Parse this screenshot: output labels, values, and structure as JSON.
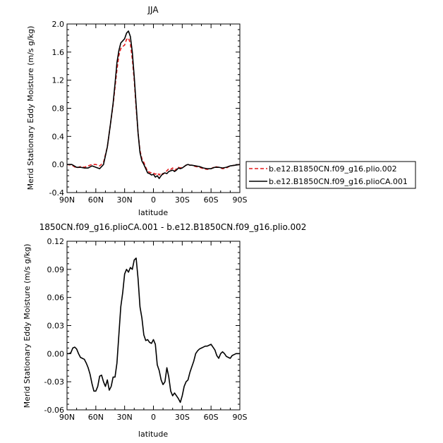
{
  "chart_data": [
    {
      "type": "line",
      "title": "JJA",
      "xlabel": "latitude",
      "ylabel": "Merid Stationary Eddy Moisture (m/s g/kg)",
      "xlim": [
        90,
        -90
      ],
      "ylim": [
        -0.4,
        2.0
      ],
      "xticks": [
        90,
        60,
        30,
        0,
        -30,
        -60,
        -90
      ],
      "xtick_labels": [
        "90N",
        "60N",
        "30N",
        "0",
        "30S",
        "60S",
        "90S"
      ],
      "yticks": [
        -0.4,
        0.0,
        0.4,
        0.8,
        1.2,
        1.6,
        2.0
      ],
      "ytick_labels": [
        "-0.4",
        "0.0",
        "0.4",
        "0.8",
        "1.2",
        "1.6",
        "2.0"
      ],
      "legend_position": "right",
      "series": [
        {
          "name": "b.e12.B1850CN.f09_g16.plio.002",
          "color": "#e41a1c",
          "dash": "dashed",
          "x": [
            90,
            85,
            80,
            76,
            72,
            68,
            64,
            60,
            56,
            52,
            48,
            45,
            42,
            40,
            38,
            36,
            34,
            32,
            30,
            28,
            26,
            24,
            22,
            20,
            18,
            16,
            14,
            12,
            10,
            8,
            6,
            4,
            2,
            0,
            -2,
            -4,
            -6,
            -8,
            -10,
            -12,
            -14,
            -16,
            -18,
            -20,
            -22,
            -24,
            -26,
            -28,
            -30,
            -32,
            -34,
            -36,
            -38,
            -40,
            -44,
            -48,
            -52,
            -56,
            -60,
            -64,
            -68,
            -72,
            -76,
            -80,
            -85,
            -90
          ],
          "y": [
            0.0,
            -0.01,
            -0.05,
            -0.03,
            -0.04,
            -0.02,
            0.0,
            0.0,
            -0.02,
            0.03,
            0.25,
            0.55,
            0.85,
            1.1,
            1.35,
            1.55,
            1.65,
            1.68,
            1.7,
            1.78,
            1.8,
            1.72,
            1.5,
            1.2,
            0.8,
            0.45,
            0.2,
            0.08,
            0.03,
            -0.04,
            -0.1,
            -0.11,
            -0.12,
            -0.12,
            -0.14,
            -0.12,
            -0.15,
            -0.12,
            -0.14,
            -0.11,
            -0.09,
            -0.06,
            -0.07,
            -0.05,
            -0.09,
            -0.06,
            -0.04,
            -0.05,
            -0.04,
            -0.03,
            -0.01,
            0.0,
            -0.01,
            -0.01,
            -0.03,
            -0.04,
            -0.06,
            -0.07,
            -0.06,
            -0.03,
            -0.04,
            -0.06,
            -0.05,
            -0.02,
            -0.01,
            0.0
          ]
        },
        {
          "name": "b.e12.B1850CN.f09_g16.plioCA.001",
          "color": "#000000",
          "dash": "solid",
          "x": [
            90,
            85,
            80,
            76,
            72,
            68,
            64,
            60,
            56,
            52,
            48,
            45,
            42,
            40,
            38,
            36,
            34,
            32,
            30,
            28,
            26,
            24,
            22,
            20,
            18,
            16,
            14,
            12,
            10,
            8,
            6,
            4,
            2,
            0,
            -2,
            -4,
            -6,
            -8,
            -10,
            -12,
            -14,
            -16,
            -18,
            -20,
            -22,
            -24,
            -26,
            -28,
            -30,
            -32,
            -34,
            -36,
            -38,
            -40,
            -44,
            -48,
            -52,
            -56,
            -60,
            -64,
            -68,
            -72,
            -76,
            -80,
            -85,
            -90
          ],
          "y": [
            0.0,
            0.0,
            -0.04,
            -0.04,
            -0.05,
            -0.05,
            -0.02,
            -0.04,
            -0.06,
            0.0,
            0.25,
            0.55,
            0.87,
            1.15,
            1.45,
            1.62,
            1.73,
            1.76,
            1.79,
            1.87,
            1.9,
            1.82,
            1.6,
            1.25,
            0.85,
            0.45,
            0.17,
            0.05,
            0.0,
            -0.06,
            -0.12,
            -0.13,
            -0.15,
            -0.14,
            -0.18,
            -0.16,
            -0.2,
            -0.16,
            -0.13,
            -0.12,
            -0.13,
            -0.1,
            -0.09,
            -0.08,
            -0.1,
            -0.08,
            -0.05,
            -0.06,
            -0.05,
            -0.03,
            -0.01,
            0.0,
            -0.01,
            -0.01,
            -0.02,
            -0.03,
            -0.05,
            -0.06,
            -0.06,
            -0.04,
            -0.04,
            -0.05,
            -0.04,
            -0.02,
            -0.01,
            0.0
          ]
        }
      ]
    },
    {
      "type": "line",
      "title": "1850CN.f09_g16.plioCA.001 - b.e12.B1850CN.f09_g16.plio.002",
      "xlabel": "latitude",
      "ylabel": "Merid Stationary Eddy Moisture (m/s g/kg)",
      "xlim": [
        90,
        -90
      ],
      "ylim": [
        -0.06,
        0.12
      ],
      "xticks": [
        90,
        60,
        30,
        0,
        -30,
        -60,
        -90
      ],
      "xtick_labels": [
        "90N",
        "60N",
        "30N",
        "0",
        "30S",
        "60S",
        "90S"
      ],
      "yticks": [
        -0.06,
        -0.03,
        0.0,
        0.03,
        0.06,
        0.09,
        0.12
      ],
      "ytick_labels": [
        "-0.06",
        "-0.03",
        "0.00",
        "0.03",
        "0.06",
        "0.09",
        "0.12"
      ],
      "series": [
        {
          "color": "#000000",
          "dash": "solid",
          "x": [
            90,
            88,
            86,
            84,
            82,
            80,
            78,
            76,
            74,
            72,
            70,
            68,
            66,
            64,
            62,
            60,
            58,
            56,
            54,
            52,
            50,
            48,
            46,
            44,
            42,
            40,
            38,
            36,
            34,
            32,
            30,
            28,
            26,
            24,
            22,
            20,
            18,
            16,
            14,
            12,
            10,
            8,
            6,
            4,
            2,
            0,
            -2,
            -4,
            -6,
            -8,
            -10,
            -12,
            -14,
            -16,
            -18,
            -20,
            -22,
            -24,
            -26,
            -28,
            -30,
            -32,
            -34,
            -36,
            -38,
            -40,
            -42,
            -44,
            -46,
            -48,
            -50,
            -52,
            -54,
            -56,
            -58,
            -60,
            -62,
            -64,
            -66,
            -68,
            -70,
            -72,
            -74,
            -76,
            -78,
            -80,
            -82,
            -84,
            -86,
            -88,
            -90
          ],
          "y": [
            0.0,
            0.0,
            0.001,
            0.006,
            0.007,
            0.005,
            0.0,
            -0.004,
            -0.005,
            -0.006,
            -0.01,
            -0.015,
            -0.022,
            -0.032,
            -0.04,
            -0.04,
            -0.035,
            -0.024,
            -0.023,
            -0.03,
            -0.035,
            -0.028,
            -0.039,
            -0.035,
            -0.025,
            -0.025,
            -0.01,
            0.02,
            0.05,
            0.065,
            0.085,
            0.09,
            0.087,
            0.092,
            0.09,
            0.1,
            0.102,
            0.08,
            0.05,
            0.038,
            0.02,
            0.014,
            0.015,
            0.012,
            0.011,
            0.015,
            0.01,
            -0.012,
            -0.018,
            -0.028,
            -0.033,
            -0.03,
            -0.015,
            -0.025,
            -0.04,
            -0.045,
            -0.042,
            -0.045,
            -0.048,
            -0.052,
            -0.045,
            -0.035,
            -0.03,
            -0.028,
            -0.02,
            -0.014,
            -0.008,
            0.0,
            0.003,
            0.005,
            0.006,
            0.007,
            0.008,
            0.008,
            0.009,
            0.01,
            0.007,
            0.004,
            -0.002,
            -0.005,
            0.0,
            0.002,
            0.0,
            -0.003,
            -0.004,
            -0.005,
            -0.002,
            -0.001,
            0.0,
            0.0,
            0.0
          ]
        }
      ]
    }
  ]
}
